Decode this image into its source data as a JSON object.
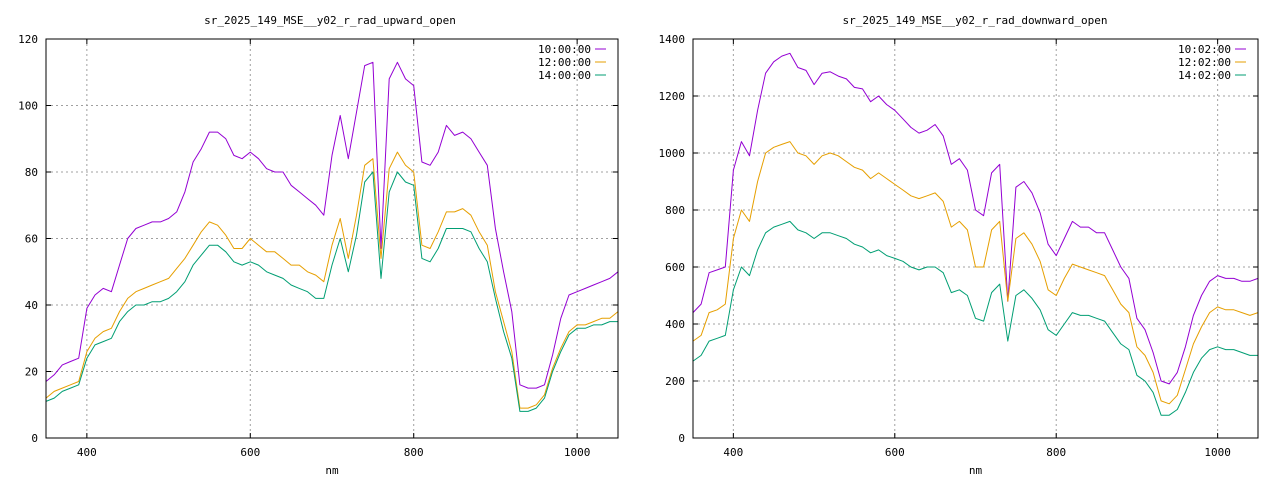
{
  "colors": [
    "#9400d3",
    "#009e73",
    "#56b4e9"
  ],
  "chart_data": [
    {
      "type": "line",
      "title": "sr_2025_149_MSE__y02_r_rad_upward_open",
      "xlabel": "nm",
      "ylabel": "",
      "xlim": [
        350,
        1050
      ],
      "ylim": [
        0,
        120
      ],
      "xticks": [
        400,
        600,
        800,
        1000
      ],
      "yticks": [
        0,
        20,
        40,
        60,
        80,
        100,
        120
      ],
      "grid": true,
      "legend_position": "top-right",
      "series": [
        {
          "name": "10:00:00",
          "color": "#9400d3",
          "x": [
            350,
            360,
            370,
            380,
            390,
            400,
            410,
            420,
            430,
            440,
            450,
            460,
            470,
            480,
            490,
            500,
            510,
            520,
            530,
            540,
            550,
            560,
            570,
            580,
            590,
            600,
            610,
            620,
            630,
            640,
            650,
            660,
            670,
            680,
            690,
            700,
            710,
            720,
            730,
            740,
            750,
            760,
            770,
            780,
            790,
            800,
            810,
            820,
            830,
            840,
            850,
            860,
            870,
            880,
            890,
            900,
            910,
            920,
            930,
            940,
            950,
            960,
            970,
            980,
            990,
            1000,
            1010,
            1020,
            1030,
            1040,
            1050
          ],
          "y": [
            17,
            19,
            22,
            23,
            24,
            39,
            43,
            45,
            44,
            52,
            60,
            63,
            64,
            65,
            65,
            66,
            68,
            74,
            83,
            87,
            92,
            92,
            90,
            85,
            84,
            86,
            84,
            81,
            80,
            80,
            76,
            74,
            72,
            70,
            67,
            85,
            97,
            84,
            98,
            112,
            113,
            57,
            108,
            113,
            108,
            106,
            83,
            82,
            86,
            94,
            91,
            92,
            90,
            86,
            82,
            63,
            50,
            38,
            16,
            15,
            15,
            16,
            25,
            36,
            43,
            44,
            45,
            46,
            47,
            48,
            50
          ]
        },
        {
          "name": "12:00:00",
          "color": "#e69f00",
          "x": [
            350,
            360,
            370,
            380,
            390,
            400,
            410,
            420,
            430,
            440,
            450,
            460,
            470,
            480,
            490,
            500,
            510,
            520,
            530,
            540,
            550,
            560,
            570,
            580,
            590,
            600,
            610,
            620,
            630,
            640,
            650,
            660,
            670,
            680,
            690,
            700,
            710,
            720,
            730,
            740,
            750,
            760,
            770,
            780,
            790,
            800,
            810,
            820,
            830,
            840,
            850,
            860,
            870,
            880,
            890,
            900,
            910,
            920,
            930,
            940,
            950,
            960,
            970,
            980,
            990,
            1000,
            1010,
            1020,
            1030,
            1040,
            1050
          ],
          "y": [
            12,
            14,
            15,
            16,
            17,
            26,
            30,
            32,
            33,
            38,
            42,
            44,
            45,
            46,
            47,
            48,
            51,
            54,
            58,
            62,
            65,
            64,
            61,
            57,
            57,
            60,
            58,
            56,
            56,
            54,
            52,
            52,
            50,
            49,
            47,
            58,
            66,
            54,
            67,
            82,
            84,
            54,
            81,
            86,
            82,
            80,
            58,
            57,
            62,
            68,
            68,
            69,
            67,
            62,
            58,
            44,
            35,
            26,
            9,
            9,
            10,
            13,
            21,
            27,
            32,
            34,
            34,
            35,
            36,
            36,
            38
          ]
        },
        {
          "name": "14:00:00",
          "color": "#009e73",
          "x": [
            350,
            360,
            370,
            380,
            390,
            400,
            410,
            420,
            430,
            440,
            450,
            460,
            470,
            480,
            490,
            500,
            510,
            520,
            530,
            540,
            550,
            560,
            570,
            580,
            590,
            600,
            610,
            620,
            630,
            640,
            650,
            660,
            670,
            680,
            690,
            700,
            710,
            720,
            730,
            740,
            750,
            760,
            770,
            780,
            790,
            800,
            810,
            820,
            830,
            840,
            850,
            860,
            870,
            880,
            890,
            900,
            910,
            920,
            930,
            940,
            950,
            960,
            970,
            980,
            990,
            1000,
            1010,
            1020,
            1030,
            1040,
            1050
          ],
          "y": [
            11,
            12,
            14,
            15,
            16,
            24,
            28,
            29,
            30,
            35,
            38,
            40,
            40,
            41,
            41,
            42,
            44,
            47,
            52,
            55,
            58,
            58,
            56,
            53,
            52,
            53,
            52,
            50,
            49,
            48,
            46,
            45,
            44,
            42,
            42,
            52,
            60,
            50,
            61,
            77,
            80,
            48,
            74,
            80,
            77,
            76,
            54,
            53,
            57,
            63,
            63,
            63,
            62,
            57,
            53,
            42,
            32,
            24,
            8,
            8,
            9,
            12,
            20,
            26,
            31,
            33,
            33,
            34,
            34,
            35,
            35
          ]
        }
      ]
    },
    {
      "type": "line",
      "title": "sr_2025_149_MSE__y02_r_rad_downward_open",
      "xlabel": "nm",
      "ylabel": "",
      "xlim": [
        350,
        1050
      ],
      "ylim": [
        0,
        1400
      ],
      "xticks": [
        400,
        600,
        800,
        1000
      ],
      "yticks": [
        0,
        200,
        400,
        600,
        800,
        1000,
        1200,
        1400
      ],
      "grid": true,
      "legend_position": "top-right",
      "series": [
        {
          "name": "10:02:00",
          "color": "#9400d3",
          "x": [
            350,
            360,
            370,
            380,
            390,
            400,
            410,
            420,
            430,
            440,
            450,
            460,
            470,
            480,
            490,
            500,
            510,
            520,
            530,
            540,
            550,
            560,
            570,
            580,
            590,
            600,
            610,
            620,
            630,
            640,
            650,
            660,
            670,
            680,
            690,
            700,
            710,
            720,
            730,
            740,
            750,
            760,
            770,
            780,
            790,
            800,
            810,
            820,
            830,
            840,
            850,
            860,
            870,
            880,
            890,
            900,
            910,
            920,
            930,
            940,
            950,
            960,
            970,
            980,
            990,
            1000,
            1010,
            1020,
            1030,
            1040,
            1050
          ],
          "y": [
            440,
            470,
            580,
            590,
            600,
            940,
            1040,
            990,
            1150,
            1280,
            1320,
            1340,
            1350,
            1300,
            1290,
            1240,
            1280,
            1285,
            1270,
            1260,
            1230,
            1225,
            1180,
            1200,
            1170,
            1150,
            1120,
            1090,
            1070,
            1080,
            1100,
            1060,
            960,
            980,
            940,
            800,
            780,
            930,
            960,
            480,
            880,
            900,
            860,
            790,
            680,
            640,
            700,
            760,
            740,
            740,
            720,
            720,
            660,
            600,
            560,
            420,
            380,
            300,
            200,
            190,
            230,
            320,
            430,
            500,
            550,
            570,
            560,
            560,
            550,
            550,
            560
          ]
        },
        {
          "name": "12:02:00",
          "color": "#e69f00",
          "x": [
            350,
            360,
            370,
            380,
            390,
            400,
            410,
            420,
            430,
            440,
            450,
            460,
            470,
            480,
            490,
            500,
            510,
            520,
            530,
            540,
            550,
            560,
            570,
            580,
            590,
            600,
            610,
            620,
            630,
            640,
            650,
            660,
            670,
            680,
            690,
            700,
            710,
            720,
            730,
            740,
            750,
            760,
            770,
            780,
            790,
            800,
            810,
            820,
            830,
            840,
            850,
            860,
            870,
            880,
            890,
            900,
            910,
            920,
            930,
            940,
            950,
            960,
            970,
            980,
            990,
            1000,
            1010,
            1020,
            1030,
            1040,
            1050
          ],
          "y": [
            340,
            360,
            440,
            450,
            470,
            700,
            800,
            760,
            900,
            1000,
            1020,
            1030,
            1040,
            1000,
            990,
            960,
            990,
            1000,
            990,
            970,
            950,
            940,
            910,
            930,
            910,
            890,
            870,
            850,
            840,
            850,
            860,
            830,
            740,
            760,
            730,
            600,
            600,
            730,
            760,
            480,
            700,
            720,
            680,
            620,
            520,
            500,
            560,
            610,
            600,
            590,
            580,
            570,
            520,
            470,
            440,
            320,
            290,
            230,
            130,
            120,
            150,
            240,
            330,
            390,
            440,
            460,
            450,
            450,
            440,
            430,
            440
          ]
        },
        {
          "name": "14:02:00",
          "color": "#009e73",
          "x": [
            350,
            360,
            370,
            380,
            390,
            400,
            410,
            420,
            430,
            440,
            450,
            460,
            470,
            480,
            490,
            500,
            510,
            520,
            530,
            540,
            550,
            560,
            570,
            580,
            590,
            600,
            610,
            620,
            630,
            640,
            650,
            660,
            670,
            680,
            690,
            700,
            710,
            720,
            730,
            740,
            750,
            760,
            770,
            780,
            790,
            800,
            810,
            820,
            830,
            840,
            850,
            860,
            870,
            880,
            890,
            900,
            910,
            920,
            930,
            940,
            950,
            960,
            970,
            980,
            990,
            1000,
            1010,
            1020,
            1030,
            1040,
            1050
          ],
          "y": [
            270,
            290,
            340,
            350,
            360,
            520,
            600,
            570,
            660,
            720,
            740,
            750,
            760,
            730,
            720,
            700,
            720,
            720,
            710,
            700,
            680,
            670,
            650,
            660,
            640,
            630,
            620,
            600,
            590,
            600,
            600,
            580,
            510,
            520,
            500,
            420,
            410,
            510,
            540,
            340,
            500,
            520,
            490,
            450,
            380,
            360,
            400,
            440,
            430,
            430,
            420,
            410,
            370,
            330,
            310,
            220,
            200,
            160,
            80,
            80,
            100,
            160,
            230,
            280,
            310,
            320,
            310,
            310,
            300,
            290,
            290
          ]
        }
      ]
    }
  ]
}
